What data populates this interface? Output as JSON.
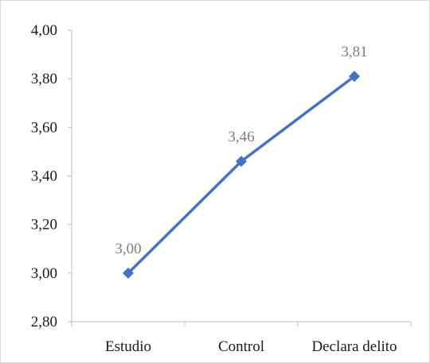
{
  "chart_data": {
    "type": "line",
    "categories": [
      "Estudio",
      "Control",
      "Declara delito"
    ],
    "values": [
      3.0,
      3.46,
      3.81
    ],
    "data_labels": [
      "3,00",
      "3,46",
      "3,81"
    ],
    "ylim": [
      2.8,
      4.0
    ],
    "yticks": [
      2.8,
      3.0,
      3.2,
      3.4,
      3.6,
      3.8,
      4.0
    ],
    "ytick_labels": [
      "2,80",
      "3,00",
      "3,20",
      "3,40",
      "3,60",
      "3,80",
      "4,00"
    ],
    "grid": false,
    "legend": "none",
    "line_color": "#4472c4",
    "marker": "diamond",
    "axis_color": "#bfbfbf"
  }
}
